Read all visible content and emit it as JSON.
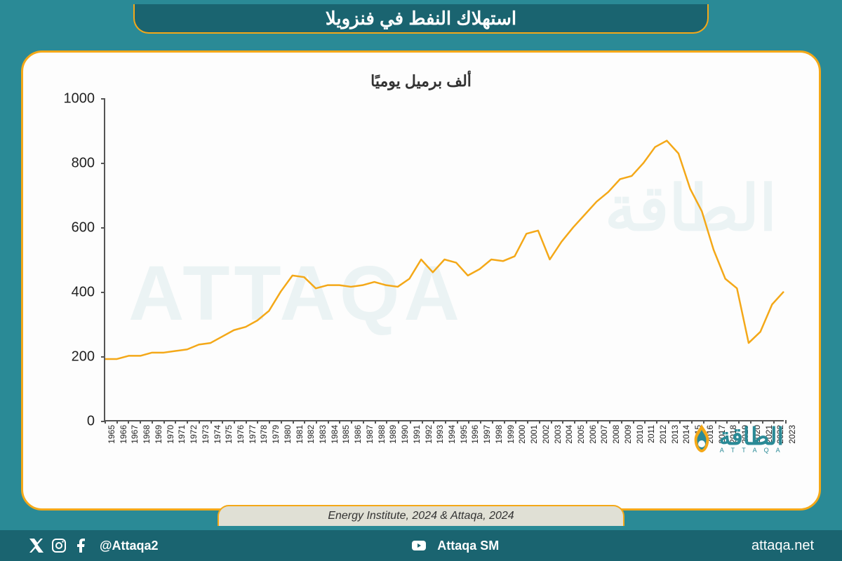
{
  "title": "استهلاك النفط في فنزويلا",
  "subtitle": "ألف برميل يوميًا",
  "source": "Energy Institute, 2024 & Attaqa, 2024",
  "logo_ar": "الطاقة",
  "logo_en": "A T T A Q A",
  "social_handle": "@Attaqa2",
  "youtube_handle": "Attaqa SM",
  "website": "attaqa.net",
  "chart": {
    "type": "line",
    "line_color": "#f4a818",
    "line_width": 2.5,
    "background_color": "#fdfdfd",
    "axis_color": "#555555",
    "text_color": "#222222",
    "ylim": [
      0,
      1000
    ],
    "ytick_step": 200,
    "yticks": [
      0,
      200,
      400,
      600,
      800,
      1000
    ],
    "years": [
      1965,
      1966,
      1967,
      1968,
      1969,
      1970,
      1971,
      1972,
      1973,
      1974,
      1975,
      1976,
      1977,
      1978,
      1979,
      1980,
      1981,
      1982,
      1983,
      1984,
      1985,
      1986,
      1987,
      1988,
      1989,
      1990,
      1991,
      1992,
      1993,
      1994,
      1995,
      1996,
      1997,
      1998,
      1999,
      2000,
      2001,
      2002,
      2003,
      2004,
      2005,
      2006,
      2007,
      2008,
      2009,
      2010,
      2011,
      2012,
      2013,
      2014,
      2015,
      2016,
      2017,
      2018,
      2019,
      2020,
      2021,
      2022,
      2023
    ],
    "values": [
      190,
      190,
      200,
      200,
      210,
      210,
      215,
      220,
      235,
      240,
      260,
      280,
      290,
      310,
      340,
      400,
      450,
      445,
      410,
      420,
      420,
      415,
      420,
      430,
      420,
      415,
      440,
      500,
      460,
      500,
      490,
      450,
      470,
      500,
      495,
      510,
      580,
      590,
      500,
      555,
      600,
      640,
      680,
      710,
      750,
      760,
      800,
      850,
      870,
      830,
      720,
      650,
      530,
      440,
      410,
      240,
      275,
      360,
      400
    ]
  },
  "colors": {
    "page_bg": "#2a8a96",
    "title_bg": "#1a6470",
    "accent": "#f4a818",
    "panel_bg": "#fdfdfd",
    "footer_bg": "#1a6470",
    "source_bg": "#e0e0d5"
  }
}
